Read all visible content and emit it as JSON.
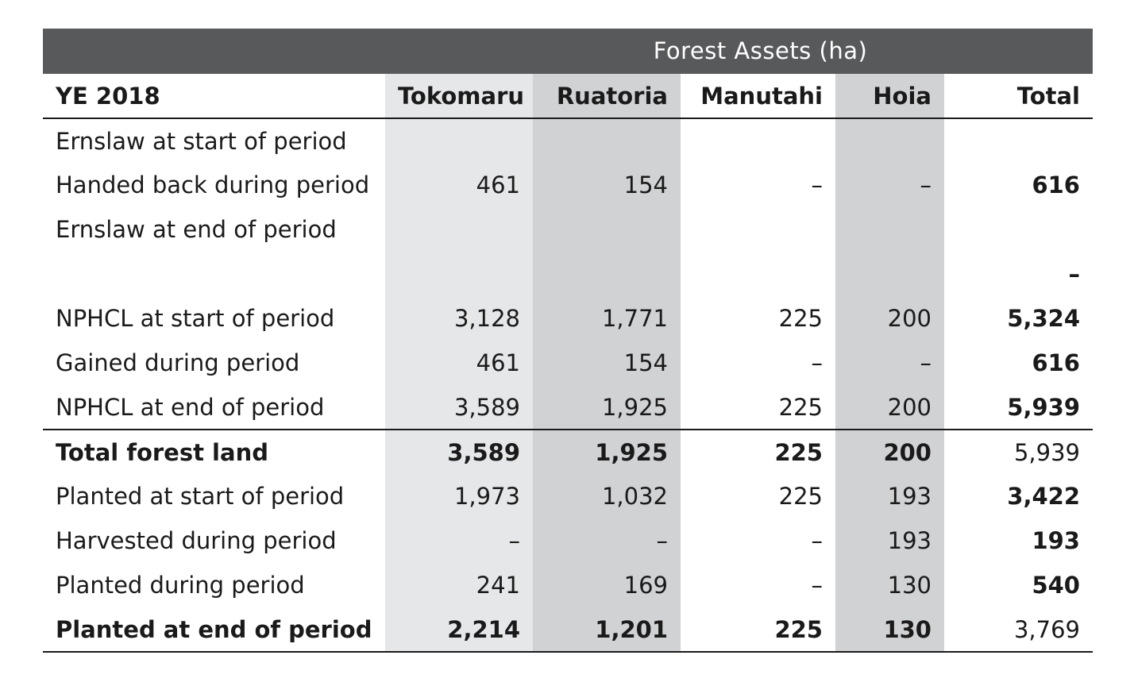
{
  "banner": {
    "title": "Forest Assets (ha)"
  },
  "header": {
    "row_label": "YE 2018",
    "columns": [
      "Tokomaru",
      "Ruatoria",
      "Manutahi",
      "Hoia",
      "Total"
    ]
  },
  "rows": [
    {
      "label": "Ernslaw at start of period",
      "values": [
        "",
        "",
        "",
        "",
        ""
      ]
    },
    {
      "label": "Handed back during period",
      "values": [
        "461",
        "154",
        "–",
        "–",
        "616"
      ]
    },
    {
      "label": "Ernslaw at end of period",
      "values": [
        "",
        "",
        "",
        "",
        ""
      ]
    },
    {
      "label": "",
      "values": [
        "",
        "",
        "",
        "",
        "–"
      ]
    },
    {
      "label": "NPHCL at start of period",
      "values": [
        "3,128",
        "1,771",
        "225",
        "200",
        "5,324"
      ]
    },
    {
      "label": "Gained during period",
      "values": [
        "461",
        "154",
        "–",
        "–",
        "616"
      ]
    },
    {
      "label": "NPHCL at end of period",
      "values": [
        "3,589",
        "1,925",
        "225",
        "200",
        "5,939"
      ]
    },
    {
      "label": "Total forest land",
      "values": [
        "3,589",
        "1,925",
        "225",
        "200",
        "5,939"
      ]
    },
    {
      "label": "Planted at start of period",
      "values": [
        "1,973",
        "1,032",
        "225",
        "193",
        "3,422"
      ]
    },
    {
      "label": "Harvested during period",
      "values": [
        "–",
        "–",
        "–",
        "193",
        "193"
      ]
    },
    {
      "label": "Planted during period",
      "values": [
        "241",
        "169",
        "–",
        "130",
        "540"
      ]
    },
    {
      "label": "Planted at end of period",
      "values": [
        "2,214",
        "1,201",
        "225",
        "130",
        "3,769"
      ]
    }
  ]
}
